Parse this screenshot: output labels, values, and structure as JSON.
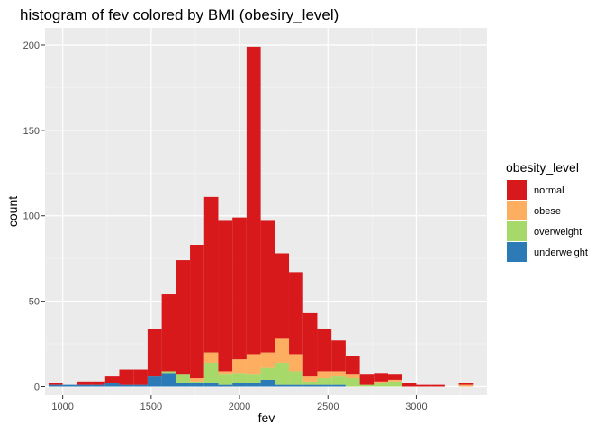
{
  "chart_data": {
    "type": "bar",
    "subtype": "stacked-histogram",
    "title": "histogram of fev colored by BMI (obesiry_level)",
    "xlabel": "fev",
    "ylabel": "count",
    "xlim": [
      900,
      3400
    ],
    "ylim": [
      -5,
      210
    ],
    "x_ticks": [
      1000,
      1500,
      2000,
      2500,
      3000
    ],
    "y_ticks": [
      0,
      50,
      100,
      150,
      200
    ],
    "grid": true,
    "legend_title": "obesity_level",
    "legend_position": "right",
    "bin_width": 80,
    "bin_centers": [
      960,
      1040,
      1120,
      1200,
      1280,
      1360,
      1440,
      1520,
      1600,
      1680,
      1760,
      1840,
      1920,
      2000,
      2080,
      2160,
      2240,
      2320,
      2400,
      2480,
      2560,
      2640,
      2720,
      2800,
      2880,
      2960,
      3040,
      3120,
      3200,
      3280
    ],
    "series": [
      {
        "name": "underweight",
        "color": "#2c7bb6",
        "values": [
          1,
          1,
          1,
          1,
          2,
          1,
          1,
          6,
          8,
          2,
          2,
          2,
          1,
          2,
          2,
          4,
          1,
          1,
          1,
          1,
          1,
          0,
          0,
          0,
          0,
          0,
          0,
          0,
          0,
          0
        ]
      },
      {
        "name": "overweight",
        "color": "#a6d96a",
        "values": [
          0,
          0,
          0,
          0,
          0,
          0,
          0,
          0,
          1,
          5,
          1,
          12,
          6,
          6,
          5,
          7,
          13,
          8,
          2,
          4,
          5,
          5,
          1,
          2,
          3,
          0,
          0,
          0,
          0,
          0
        ]
      },
      {
        "name": "obese",
        "color": "#fdae61",
        "values": [
          0,
          0,
          0,
          0,
          0,
          0,
          0,
          0,
          0,
          0,
          2,
          6,
          2,
          8,
          12,
          9,
          14,
          10,
          3,
          4,
          3,
          2,
          0,
          1,
          1,
          0,
          0,
          0,
          0,
          1
        ]
      },
      {
        "name": "normal",
        "color": "#d7191c",
        "values": [
          1,
          0,
          2,
          2,
          4,
          9,
          9,
          28,
          45,
          67,
          78,
          91,
          88,
          83,
          180,
          77,
          50,
          48,
          37,
          25,
          18,
          11,
          6,
          5,
          3,
          2,
          1,
          1,
          0,
          1
        ]
      }
    ],
    "legend_order": [
      "normal",
      "obese",
      "overweight",
      "underweight"
    ]
  }
}
